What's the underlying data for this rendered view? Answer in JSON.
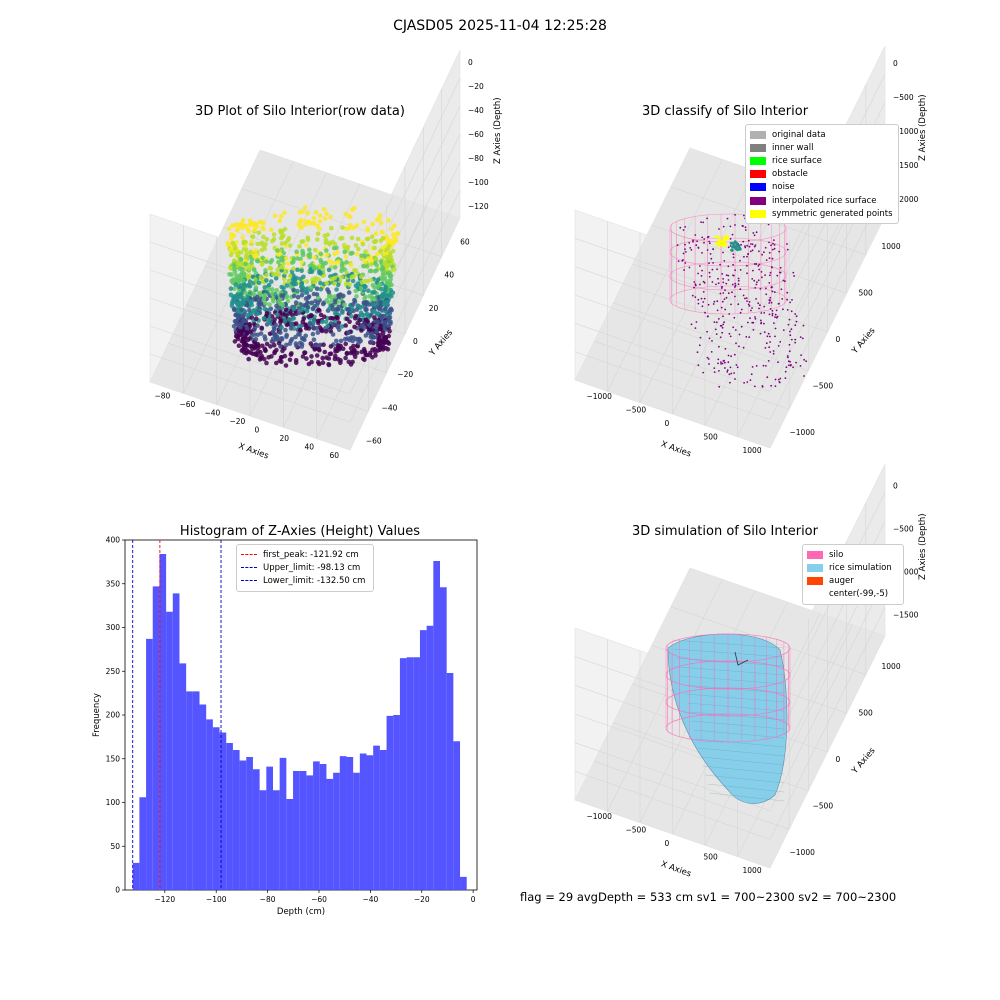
{
  "suptitle": "CJASD05 2025-11-04 12:25:28",
  "colors": {
    "hist": "#4c4cff",
    "first_peak": "#ff0000",
    "limits": "#0000cc",
    "silo": "#ff69b4",
    "rice": "#87ceeb",
    "auger": "#ff4500",
    "interp": "#800080"
  },
  "plot1": {
    "title": "3D Plot of Silo Interior(row data)",
    "xlabel": "X Axies",
    "ylabel": "Y Axies",
    "zlabel": "Z Axies (Depth)",
    "xticks": [
      "−80",
      "−60",
      "−40",
      "−20",
      "0",
      "20",
      "40",
      "60"
    ],
    "yticks": [
      "−60",
      "−40",
      "−20",
      "0",
      "20",
      "40",
      "60"
    ],
    "zticks": [
      "0",
      "−20",
      "−40",
      "−60",
      "−80",
      "−100",
      "−120"
    ]
  },
  "plot2": {
    "title": "3D classify of Silo Interior",
    "xlabel": "X Axies",
    "ylabel": "Y Axies",
    "zlabel": "Z Axies (Depth)",
    "xticks": [
      "−1000",
      "−500",
      "0",
      "500",
      "1000"
    ],
    "yticks": [
      "−1000",
      "−500",
      "0",
      "500",
      "1000"
    ],
    "zticks": [
      "0",
      "−500",
      "−1000",
      "−1500",
      "−2000"
    ],
    "legend": [
      {
        "label": "original data",
        "color": "#b0b0b0"
      },
      {
        "label": "inner wall",
        "color": "#808080"
      },
      {
        "label": "rice surface",
        "color": "#00ff00"
      },
      {
        "label": "obstacle",
        "color": "#ff0000"
      },
      {
        "label": "noise",
        "color": "#0000ff"
      },
      {
        "label": "interpolated rice surface",
        "color": "#800080"
      },
      {
        "label": "symmetric generated points",
        "color": "#ffff00"
      }
    ]
  },
  "plot4": {
    "title": "3D simulation of Silo Interior",
    "xlabel": "X Axies",
    "ylabel": "Y Axies",
    "zlabel": "Z Axies (Depth)",
    "xticks": [
      "−1000",
      "−500",
      "0",
      "500",
      "1000"
    ],
    "yticks": [
      "−1000",
      "−500",
      "0",
      "500",
      "1000"
    ],
    "zticks": [
      "0",
      "−500",
      "−1000",
      "−1500"
    ],
    "legend": [
      {
        "label": "silo",
        "color": "#ff69b4"
      },
      {
        "label": "rice simulation",
        "color": "#87ceeb"
      },
      {
        "label": "auger",
        "color": "#ff4500"
      },
      {
        "label": "center(-99,-5)",
        "color": "#ffffff"
      }
    ]
  },
  "footer": "flag = 29  avgDepth = 533 cm  sv1 = 700~2300  sv2 = 700~2300",
  "chart_data": [
    {
      "type": "bar",
      "title": "Histogram of Z-Axies (Height) Values",
      "xlabel": "Depth (cm)",
      "ylabel": "Frequency",
      "xlim": [
        -135.5,
        1.5
      ],
      "ylim": [
        0,
        400
      ],
      "xticks": [
        -120,
        -100,
        -80,
        -60,
        -40,
        -20,
        0
      ],
      "xtick_labels": [
        "−120",
        "−100",
        "−80",
        "−60",
        "−40",
        "−20",
        "0"
      ],
      "yticks": [
        0,
        50,
        100,
        150,
        200,
        250,
        300,
        350,
        400
      ],
      "bin_start": -132.5,
      "bin_width": 2.6,
      "values": [
        31,
        106,
        287,
        347,
        384,
        318,
        339,
        259,
        227,
        227,
        212,
        195,
        186,
        180,
        168,
        160,
        148,
        152,
        138,
        114,
        141,
        114,
        151,
        104,
        136,
        136,
        131,
        147,
        144,
        127,
        134,
        153,
        152,
        134,
        156,
        154,
        165,
        160,
        199,
        200,
        265,
        266,
        266,
        297,
        302,
        376,
        346,
        248,
        170,
        15
      ],
      "vlines": [
        {
          "label": "first_peak: -121.92 cm",
          "x": -121.92,
          "color": "#ff0000"
        },
        {
          "label": "Upper_limit: -98.13 cm",
          "x": -98.13,
          "color": "#0000cc"
        },
        {
          "label": "Lower_limit: -132.50 cm",
          "x": -132.5,
          "color": "#0000cc"
        }
      ]
    }
  ]
}
